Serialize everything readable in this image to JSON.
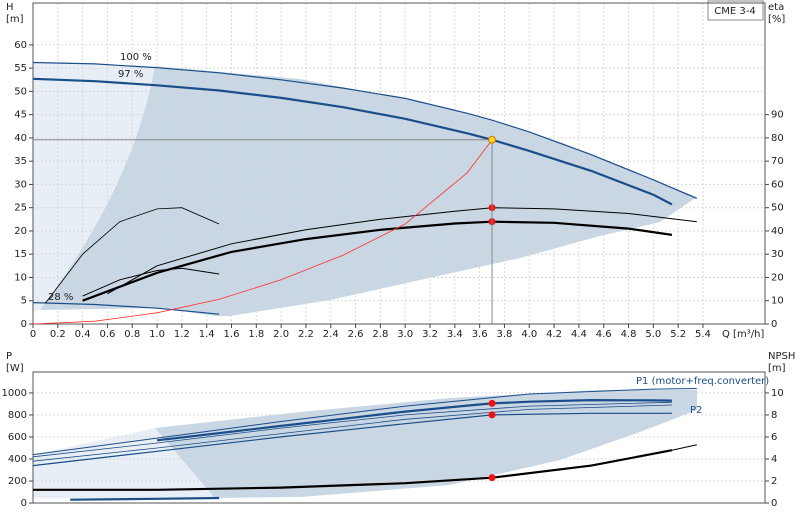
{
  "chart_data": [
    {
      "type": "line",
      "title": "CME 3-4",
      "y_label": [
        "H",
        "[m]"
      ],
      "y2_label": [
        "eta",
        "[%]"
      ],
      "x_label": "Q [m³/h]",
      "annotations": [
        "100 %",
        "97 %",
        "28 %"
      ],
      "xlim": [
        0,
        5.9
      ],
      "ylim": [
        0,
        69
      ],
      "y2lim": [
        0,
        138
      ],
      "grid": true,
      "xticks": [
        0,
        0.2,
        0.4,
        0.6,
        0.8,
        {
          "value": 1,
          "label": "1.0"
        },
        1.2,
        1.4,
        1.6,
        1.8,
        {
          "value": 2,
          "label": "2.0"
        },
        2.2,
        2.4,
        2.6,
        2.8,
        {
          "value": 3,
          "label": "3.0"
        },
        3.2,
        3.4,
        3.6,
        3.8,
        {
          "value": 4,
          "label": "4.0"
        },
        4.2,
        4.4,
        4.6,
        4.8,
        {
          "value": 5,
          "label": "5.0"
        },
        5.2,
        5.4
      ],
      "yticks": [
        0,
        5,
        10,
        15,
        20,
        25,
        30,
        35,
        40,
        45,
        50,
        55,
        60
      ],
      "y2ticks": [
        0,
        10,
        20,
        30,
        40,
        50,
        60,
        70,
        80,
        90
      ],
      "series": [
        {
          "color": "#1a4e8a",
          "width": 1.2,
          "x": [
            0,
            0.5,
            1,
            1.5,
            2,
            2.5,
            3,
            3.5,
            3.7,
            4,
            4.5,
            5,
            5.35
          ],
          "values": [
            56.2,
            55.9,
            55.1,
            54,
            52.5,
            50.7,
            48.5,
            45.3,
            43.8,
            41.3,
            36.4,
            31,
            27
          ]
        },
        {
          "color": "#1a4e8a",
          "width": 2.2,
          "x": [
            0,
            0.5,
            1,
            1.5,
            2,
            2.5,
            3,
            3.5,
            3.7,
            4,
            4.5,
            5,
            5.15
          ],
          "values": [
            52.7,
            52.2,
            51.3,
            50.2,
            48.6,
            46.6,
            44.1,
            41,
            39.6,
            37.2,
            32.9,
            27.8,
            25.7
          ]
        },
        {
          "color": "#1a4e8a",
          "width": 1.2,
          "x": [
            0,
            0.5,
            1,
            1.5
          ],
          "values": [
            4.6,
            4.2,
            3.4,
            2.1
          ]
        },
        {
          "color": "#000000",
          "width": 1,
          "axis": "y2",
          "x": [
            0.6,
            1,
            1.6,
            2.2,
            2.8,
            3.4,
            3.7,
            4.2,
            4.8,
            5.35
          ],
          "values": [
            13,
            25,
            34.5,
            40.5,
            45,
            48.5,
            50,
            49.5,
            47.5,
            44
          ]
        },
        {
          "color": "#000000",
          "width": 2.2,
          "axis": "y2",
          "x": [
            0.4,
            1,
            1.6,
            2.2,
            2.8,
            3.4,
            3.7,
            4.2,
            4.8,
            5.15
          ],
          "values": [
            10,
            22,
            31,
            36.5,
            40.5,
            43.2,
            44,
            43.5,
            41,
            38.3
          ]
        },
        {
          "color": "#000000",
          "width": 0.8,
          "axis": "y2",
          "x": [
            0.1,
            0.4,
            0.7,
            1,
            1.2,
            1.5
          ],
          "values": [
            9,
            30,
            44,
            49.5,
            50,
            43
          ]
        },
        {
          "color": "#000000",
          "width": 1,
          "axis": "y2",
          "x": [
            0.4,
            0.7,
            1,
            1.2,
            1.5
          ],
          "values": [
            12,
            19,
            23,
            24,
            21.5
          ]
        },
        {
          "color": "#ff3030",
          "width": 0.8,
          "x": [
            0,
            0.5,
            1,
            1.5,
            2,
            2.5,
            3,
            3.5,
            3.7
          ],
          "values": [
            0,
            0.6,
            2.4,
            5.3,
            9.5,
            14.8,
            21.5,
            32.5,
            39.6
          ]
        },
        {
          "color": "#ee1111",
          "marker": true,
          "axis": "y2",
          "x": [
            3.7,
            3.7
          ],
          "values": [
            50,
            44
          ]
        },
        {
          "color": "#ffd030",
          "marker": true,
          "guides": true,
          "x": [
            3.7
          ],
          "values": [
            39.6
          ]
        }
      ]
    },
    {
      "type": "line",
      "y_label": [
        "P",
        "[W]"
      ],
      "y2_label": [
        "NPSH",
        "[m]"
      ],
      "xlim": [
        0,
        5.9
      ],
      "ylim": [
        0,
        1190
      ],
      "y2lim": [
        0,
        11.9
      ],
      "grid": true,
      "yticks": [
        0,
        200,
        400,
        600,
        800,
        1000
      ],
      "y2ticks": [
        0,
        2,
        4,
        6,
        8,
        10
      ],
      "series": [
        {
          "color": "#1a4e8a",
          "width": 1,
          "x": [
            0,
            1,
            2,
            3,
            4,
            5,
            5.35
          ],
          "values": [
            440,
            590,
            740,
            880,
            990,
            1035,
            1040
          ]
        },
        {
          "name": "P1 (motor+freq.converter)",
          "color": "#1a4e8a",
          "width": 2.2,
          "x": [
            1,
            1.5,
            2,
            2.5,
            3,
            3.5,
            3.7,
            4,
            4.5,
            5,
            5.15
          ],
          "values": [
            570,
            635,
            700,
            765,
            830,
            885,
            905,
            920,
            935,
            932,
            930
          ]
        },
        {
          "color": "#1a4e8a",
          "width": 0.8,
          "x": [
            0,
            1,
            2,
            3,
            4,
            5.15
          ],
          "values": [
            420,
            545,
            680,
            800,
            880,
            915
          ]
        },
        {
          "color": "#1a4e8a",
          "width": 0.8,
          "x": [
            0,
            1,
            2,
            3,
            4,
            5.15
          ],
          "values": [
            380,
            500,
            630,
            760,
            850,
            890
          ]
        },
        {
          "name": "P2",
          "color": "#1a4e8a",
          "width": 1.2,
          "x": [
            0,
            1,
            2,
            3,
            3.7,
            4.5,
            5.15
          ],
          "values": [
            340,
            470,
            600,
            720,
            800,
            815,
            815
          ]
        },
        {
          "color": "#1a4e8a",
          "width": 2.2,
          "x": [
            0.3,
            1,
            1.5
          ],
          "values": [
            30,
            38,
            45
          ]
        },
        {
          "color": "#000000",
          "width": 2.2,
          "axis": "y2",
          "x": [
            0,
            1,
            2,
            3,
            3.7,
            4.5,
            5.15
          ],
          "values": [
            1.2,
            1.2,
            1.4,
            1.8,
            2.3,
            3.4,
            4.8
          ]
        },
        {
          "color": "#000000",
          "width": 1,
          "axis": "y2",
          "x": [
            5.15,
            5.35
          ],
          "values": [
            4.8,
            5.3
          ]
        },
        {
          "color": "#ee1111",
          "marker": true,
          "x": [
            3.7,
            3.7
          ],
          "values": [
            905,
            800
          ]
        },
        {
          "color": "#ee1111",
          "marker": true,
          "axis": "y2",
          "x": [
            3.7
          ],
          "values": [
            2.3
          ]
        }
      ]
    }
  ]
}
